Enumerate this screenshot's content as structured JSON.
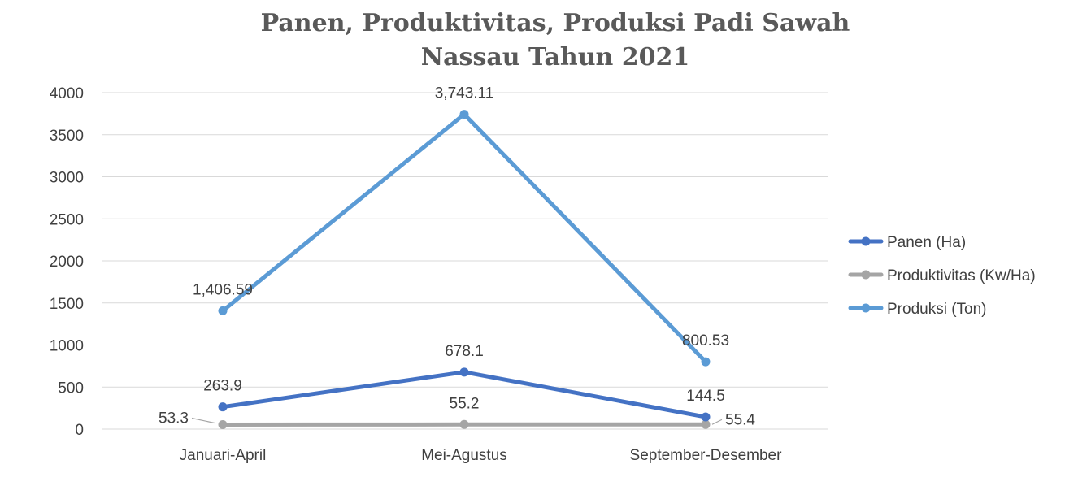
{
  "chart_data": {
    "type": "line",
    "title": [
      "Panen, Produktivitas, Produksi Padi Sawah",
      "Nassau Tahun 2021"
    ],
    "xlabel": "",
    "ylabel": "",
    "categories": [
      "Januari-April",
      "Mei-Agustus",
      "September-Desember"
    ],
    "ylim": [
      0,
      4000
    ],
    "yticks": [
      0,
      500,
      1000,
      1500,
      2000,
      2500,
      3000,
      3500,
      4000
    ],
    "grid": true,
    "legend_position": "right",
    "series": [
      {
        "name": "Panen (Ha)",
        "color": "#4472c4",
        "values": [
          263.9,
          678.1,
          144.5
        ],
        "labels": [
          "263.9",
          "678.1",
          "144.5"
        ]
      },
      {
        "name": "Produktivitas (Kw/Ha)",
        "color": "#a5a5a5",
        "values": [
          53.3,
          55.2,
          55.4
        ],
        "labels": [
          "53.3",
          "55.2",
          "55.4"
        ]
      },
      {
        "name": "Produksi (Ton)",
        "color": "#5b9bd5",
        "values": [
          1406.59,
          3743.11,
          800.53
        ],
        "labels": [
          "1,406.59",
          "3,743.11",
          "800.53"
        ]
      }
    ]
  }
}
